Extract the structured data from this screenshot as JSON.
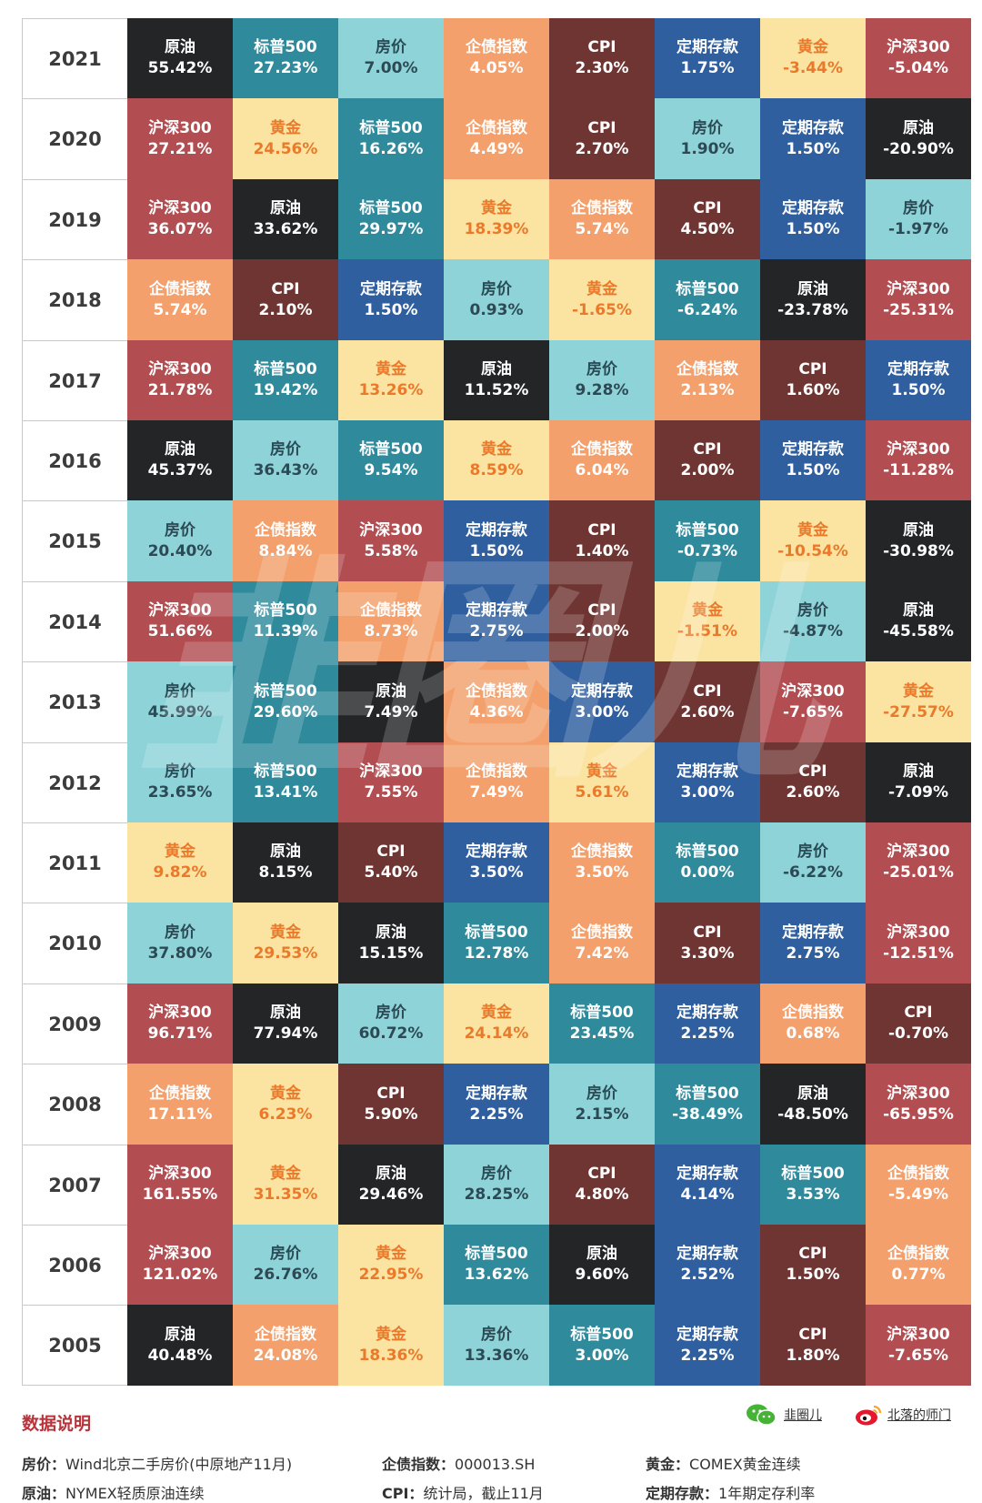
{
  "chart_data": {
    "type": "table",
    "title": "",
    "columns": 8,
    "rows": [
      {
        "year": "2021",
        "cells": [
          {
            "name": "原油",
            "value": "55.42%"
          },
          {
            "name": "标普500",
            "value": "27.23%"
          },
          {
            "name": "房价",
            "value": "7.00%"
          },
          {
            "name": "企债指数",
            "value": "4.05%"
          },
          {
            "name": "CPI",
            "value": "2.30%"
          },
          {
            "name": "定期存款",
            "value": "1.75%"
          },
          {
            "name": "黄金",
            "value": "-3.44%"
          },
          {
            "name": "沪深300",
            "value": "-5.04%"
          }
        ]
      },
      {
        "year": "2020",
        "cells": [
          {
            "name": "沪深300",
            "value": "27.21%"
          },
          {
            "name": "黄金",
            "value": "24.56%"
          },
          {
            "name": "标普500",
            "value": "16.26%"
          },
          {
            "name": "企债指数",
            "value": "4.49%"
          },
          {
            "name": "CPI",
            "value": "2.70%"
          },
          {
            "name": "房价",
            "value": "1.90%"
          },
          {
            "name": "定期存款",
            "value": "1.50%"
          },
          {
            "name": "原油",
            "value": "-20.90%"
          }
        ]
      },
      {
        "year": "2019",
        "cells": [
          {
            "name": "沪深300",
            "value": "36.07%"
          },
          {
            "name": "原油",
            "value": "33.62%"
          },
          {
            "name": "标普500",
            "value": "29.97%"
          },
          {
            "name": "黄金",
            "value": "18.39%"
          },
          {
            "name": "企债指数",
            "value": "5.74%"
          },
          {
            "name": "CPI",
            "value": "4.50%"
          },
          {
            "name": "定期存款",
            "value": "1.50%"
          },
          {
            "name": "房价",
            "value": "-1.97%"
          }
        ]
      },
      {
        "year": "2018",
        "cells": [
          {
            "name": "企债指数",
            "value": "5.74%"
          },
          {
            "name": "CPI",
            "value": "2.10%"
          },
          {
            "name": "定期存款",
            "value": "1.50%"
          },
          {
            "name": "房价",
            "value": "0.93%"
          },
          {
            "name": "黄金",
            "value": "-1.65%"
          },
          {
            "name": "标普500",
            "value": "-6.24%"
          },
          {
            "name": "原油",
            "value": "-23.78%"
          },
          {
            "name": "沪深300",
            "value": "-25.31%"
          }
        ]
      },
      {
        "year": "2017",
        "cells": [
          {
            "name": "沪深300",
            "value": "21.78%"
          },
          {
            "name": "标普500",
            "value": "19.42%"
          },
          {
            "name": "黄金",
            "value": "13.26%"
          },
          {
            "name": "原油",
            "value": "11.52%"
          },
          {
            "name": "房价",
            "value": "9.28%"
          },
          {
            "name": "企债指数",
            "value": "2.13%"
          },
          {
            "name": "CPI",
            "value": "1.60%"
          },
          {
            "name": "定期存款",
            "value": "1.50%"
          }
        ]
      },
      {
        "year": "2016",
        "cells": [
          {
            "name": "原油",
            "value": "45.37%"
          },
          {
            "name": "房价",
            "value": "36.43%"
          },
          {
            "name": "标普500",
            "value": "9.54%"
          },
          {
            "name": "黄金",
            "value": "8.59%"
          },
          {
            "name": "企债指数",
            "value": "6.04%"
          },
          {
            "name": "CPI",
            "value": "2.00%"
          },
          {
            "name": "定期存款",
            "value": "1.50%"
          },
          {
            "name": "沪深300",
            "value": "-11.28%"
          }
        ]
      },
      {
        "year": "2015",
        "cells": [
          {
            "name": "房价",
            "value": "20.40%"
          },
          {
            "name": "企债指数",
            "value": "8.84%"
          },
          {
            "name": "沪深300",
            "value": "5.58%"
          },
          {
            "name": "定期存款",
            "value": "1.50%"
          },
          {
            "name": "CPI",
            "value": "1.40%"
          },
          {
            "name": "标普500",
            "value": "-0.73%"
          },
          {
            "name": "黄金",
            "value": "-10.54%"
          },
          {
            "name": "原油",
            "value": "-30.98%"
          }
        ]
      },
      {
        "year": "2014",
        "cells": [
          {
            "name": "沪深300",
            "value": "51.66%"
          },
          {
            "name": "标普500",
            "value": "11.39%"
          },
          {
            "name": "企债指数",
            "value": "8.73%"
          },
          {
            "name": "定期存款",
            "value": "2.75%"
          },
          {
            "name": "CPI",
            "value": "2.00%"
          },
          {
            "name": "黄金",
            "value": "-1.51%"
          },
          {
            "name": "房价",
            "value": "-4.87%"
          },
          {
            "name": "原油",
            "value": "-45.58%"
          }
        ]
      },
      {
        "year": "2013",
        "cells": [
          {
            "name": "房价",
            "value": "45.99%"
          },
          {
            "name": "标普500",
            "value": "29.60%"
          },
          {
            "name": "原油",
            "value": "7.49%"
          },
          {
            "name": "企债指数",
            "value": "4.36%"
          },
          {
            "name": "定期存款",
            "value": "3.00%"
          },
          {
            "name": "CPI",
            "value": "2.60%"
          },
          {
            "name": "沪深300",
            "value": "-7.65%"
          },
          {
            "name": "黄金",
            "value": "-27.57%"
          }
        ]
      },
      {
        "year": "2012",
        "cells": [
          {
            "name": "房价",
            "value": "23.65%"
          },
          {
            "name": "标普500",
            "value": "13.41%"
          },
          {
            "name": "沪深300",
            "value": "7.55%"
          },
          {
            "name": "企债指数",
            "value": "7.49%"
          },
          {
            "name": "黄金",
            "value": "5.61%"
          },
          {
            "name": "定期存款",
            "value": "3.00%"
          },
          {
            "name": "CPI",
            "value": "2.60%"
          },
          {
            "name": "原油",
            "value": "-7.09%"
          }
        ]
      },
      {
        "year": "2011",
        "cells": [
          {
            "name": "黄金",
            "value": "9.82%"
          },
          {
            "name": "原油",
            "value": "8.15%"
          },
          {
            "name": "CPI",
            "value": "5.40%"
          },
          {
            "name": "定期存款",
            "value": "3.50%"
          },
          {
            "name": "企债指数",
            "value": "3.50%"
          },
          {
            "name": "标普500",
            "value": "0.00%"
          },
          {
            "name": "房价",
            "value": "-6.22%"
          },
          {
            "name": "沪深300",
            "value": "-25.01%"
          }
        ]
      },
      {
        "year": "2010",
        "cells": [
          {
            "name": "房价",
            "value": "37.80%"
          },
          {
            "name": "黄金",
            "value": "29.53%"
          },
          {
            "name": "原油",
            "value": "15.15%"
          },
          {
            "name": "标普500",
            "value": "12.78%"
          },
          {
            "name": "企债指数",
            "value": "7.42%"
          },
          {
            "name": "CPI",
            "value": "3.30%"
          },
          {
            "name": "定期存款",
            "value": "2.75%"
          },
          {
            "name": "沪深300",
            "value": "-12.51%"
          }
        ]
      },
      {
        "year": "2009",
        "cells": [
          {
            "name": "沪深300",
            "value": "96.71%"
          },
          {
            "name": "原油",
            "value": "77.94%"
          },
          {
            "name": "房价",
            "value": "60.72%"
          },
          {
            "name": "黄金",
            "value": "24.14%"
          },
          {
            "name": "标普500",
            "value": "23.45%"
          },
          {
            "name": "定期存款",
            "value": "2.25%"
          },
          {
            "name": "企债指数",
            "value": "0.68%"
          },
          {
            "name": "CPI",
            "value": "-0.70%"
          }
        ]
      },
      {
        "year": "2008",
        "cells": [
          {
            "name": "企债指数",
            "value": "17.11%"
          },
          {
            "name": "黄金",
            "value": "6.23%"
          },
          {
            "name": "CPI",
            "value": "5.90%"
          },
          {
            "name": "定期存款",
            "value": "2.25%"
          },
          {
            "name": "房价",
            "value": "2.15%"
          },
          {
            "name": "标普500",
            "value": "-38.49%"
          },
          {
            "name": "原油",
            "value": "-48.50%"
          },
          {
            "name": "沪深300",
            "value": "-65.95%"
          }
        ]
      },
      {
        "year": "2007",
        "cells": [
          {
            "name": "沪深300",
            "value": "161.55%"
          },
          {
            "name": "黄金",
            "value": "31.35%"
          },
          {
            "name": "原油",
            "value": "29.46%"
          },
          {
            "name": "房价",
            "value": "28.25%"
          },
          {
            "name": "CPI",
            "value": "4.80%"
          },
          {
            "name": "定期存款",
            "value": "4.14%"
          },
          {
            "name": "标普500",
            "value": "3.53%"
          },
          {
            "name": "企债指数",
            "value": "-5.49%"
          }
        ]
      },
      {
        "year": "2006",
        "cells": [
          {
            "name": "沪深300",
            "value": "121.02%"
          },
          {
            "name": "房价",
            "value": "26.76%"
          },
          {
            "name": "黄金",
            "value": "22.95%"
          },
          {
            "name": "标普500",
            "value": "13.62%"
          },
          {
            "name": "原油",
            "value": "9.60%"
          },
          {
            "name": "定期存款",
            "value": "2.52%"
          },
          {
            "name": "CPI",
            "value": "1.50%"
          },
          {
            "name": "企债指数",
            "value": "0.77%"
          }
        ]
      },
      {
        "year": "2005",
        "cells": [
          {
            "name": "原油",
            "value": "40.48%"
          },
          {
            "name": "企债指数",
            "value": "24.08%"
          },
          {
            "name": "黄金",
            "value": "18.36%"
          },
          {
            "name": "房价",
            "value": "13.36%"
          },
          {
            "name": "标普500",
            "value": "3.00%"
          },
          {
            "name": "定期存款",
            "value": "2.25%"
          },
          {
            "name": "CPI",
            "value": "1.80%"
          },
          {
            "name": "沪深300",
            "value": "-7.65%"
          }
        ]
      }
    ]
  },
  "asset_colors": {
    "房价": "#8ed3d8",
    "原油": "#232526",
    "标普500": "#2f8a9c",
    "沪深300": "#b24e52",
    "黄金": "#fbe3a2",
    "企债指数": "#f3a06c",
    "CPI": "#6e3532",
    "定期存款": "#2f5f9e"
  },
  "footer": {
    "title": "数据说明",
    "brand1": "韭圈儿",
    "brand2": "北落的师门",
    "notes": [
      {
        "label": "房价：",
        "text": "Wind北京二手房价(中原地产11月)"
      },
      {
        "label": "企债指数：",
        "text": "000013.SH"
      },
      {
        "label": "黄金：",
        "text": "COMEX黄金连续"
      },
      {
        "label": "原油：",
        "text": "NYMEX轻质原油连续"
      },
      {
        "label": "CPI：",
        "text": "统计局，截止11月"
      },
      {
        "label": "定期存款：",
        "text": "1年期定存利率"
      }
    ]
  }
}
